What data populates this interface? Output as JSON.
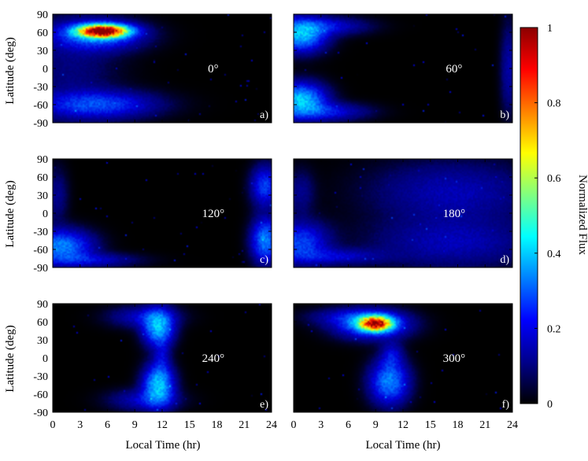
{
  "chart_data": {
    "type": "heatmap",
    "panels": [
      {
        "id": "a)",
        "angle": "0°",
        "blobs": [
          {
            "x": 5.5,
            "y": 62,
            "sx": 1.8,
            "sy": 7,
            "peak": 1.0
          },
          {
            "x": 5.0,
            "y": 55,
            "sx": 3.2,
            "sy": 16,
            "peak": 0.22
          },
          {
            "x": 5.0,
            "y": -60,
            "sx": 4.2,
            "sy": 15,
            "peak": 0.18
          },
          {
            "x": 2.0,
            "y": 0,
            "sx": 3.5,
            "sy": 60,
            "peak": 0.05
          }
        ]
      },
      {
        "id": "b)",
        "angle": "60°",
        "blobs": [
          {
            "x": 0.8,
            "y": 55,
            "sx": 1.8,
            "sy": 18,
            "peak": 0.3
          },
          {
            "x": 0.8,
            "y": -52,
            "sx": 1.8,
            "sy": 18,
            "peak": 0.32
          },
          {
            "x": 3.5,
            "y": 70,
            "sx": 3.0,
            "sy": 10,
            "peak": 0.12
          },
          {
            "x": 3.5,
            "y": -72,
            "sx": 3.0,
            "sy": 10,
            "peak": 0.13
          },
          {
            "x": 23.6,
            "y": 0,
            "sx": 0.6,
            "sy": 50,
            "peak": 0.08
          }
        ]
      },
      {
        "id": "c)",
        "angle": "120°",
        "blobs": [
          {
            "x": 1.0,
            "y": -55,
            "sx": 2.2,
            "sy": 18,
            "peak": 0.25
          },
          {
            "x": 23.3,
            "y": -45,
            "sx": 1.0,
            "sy": 24,
            "peak": 0.25
          },
          {
            "x": 23.3,
            "y": 45,
            "sx": 1.0,
            "sy": 22,
            "peak": 0.18
          },
          {
            "x": 4.0,
            "y": -78,
            "sx": 3.5,
            "sy": 8,
            "peak": 0.1
          },
          {
            "x": 0.5,
            "y": 30,
            "sx": 0.8,
            "sy": 30,
            "peak": 0.06
          }
        ]
      },
      {
        "id": "d)",
        "angle": "180°",
        "blobs": [
          {
            "x": 0.8,
            "y": -48,
            "sx": 2.0,
            "sy": 22,
            "peak": 0.18
          },
          {
            "x": 4.5,
            "y": -72,
            "sx": 3.5,
            "sy": 9,
            "peak": 0.1
          },
          {
            "x": 17.5,
            "y": 35,
            "sx": 6.0,
            "sy": 35,
            "peak": 0.09
          },
          {
            "x": 17.5,
            "y": -50,
            "sx": 6.0,
            "sy": 28,
            "peak": 0.09
          },
          {
            "x": 0.8,
            "y": 35,
            "sx": 1.0,
            "sy": 25,
            "peak": 0.06
          }
        ]
      },
      {
        "id": "e)",
        "angle": "240°",
        "blobs": [
          {
            "x": 11.6,
            "y": 50,
            "sx": 1.1,
            "sy": 20,
            "peak": 0.3
          },
          {
            "x": 11.6,
            "y": -45,
            "sx": 1.1,
            "sy": 22,
            "peak": 0.32
          },
          {
            "x": 10.0,
            "y": 68,
            "sx": 2.5,
            "sy": 12,
            "peak": 0.1
          },
          {
            "x": 10.0,
            "y": -70,
            "sx": 2.5,
            "sy": 12,
            "peak": 0.1
          },
          {
            "x": 12.0,
            "y": 0,
            "sx": 0.6,
            "sy": 20,
            "peak": 0.08
          }
        ]
      },
      {
        "id": "f)",
        "angle": "300°",
        "blobs": [
          {
            "x": 9.0,
            "y": 57,
            "sx": 1.2,
            "sy": 8,
            "peak": 0.8
          },
          {
            "x": 8.6,
            "y": 55,
            "sx": 2.6,
            "sy": 15,
            "peak": 0.25
          },
          {
            "x": 10.5,
            "y": -40,
            "sx": 1.4,
            "sy": 24,
            "peak": 0.25
          },
          {
            "x": 10.8,
            "y": 5,
            "sx": 0.8,
            "sy": 15,
            "peak": 0.1
          },
          {
            "x": 6.0,
            "y": 68,
            "sx": 3.0,
            "sy": 10,
            "peak": 0.08
          }
        ]
      }
    ],
    "xlabel": "Local Time (hr)",
    "ylabel": "Latitude (deg)",
    "xlim": [
      0,
      24
    ],
    "ylim": [
      -90,
      90
    ],
    "xticks": [
      "0",
      "3",
      "6",
      "9",
      "12",
      "15",
      "18",
      "21",
      "24"
    ],
    "yticks": [
      "90",
      "60",
      "30",
      "0",
      "-30",
      "-60",
      "-90"
    ],
    "colorbar": {
      "label": "Normalized Flux",
      "range": [
        0,
        1
      ],
      "ticks": [
        "1",
        "0.8",
        "0.6",
        "0.4",
        "0.2",
        "0"
      ],
      "colors": [
        "#000000",
        "#00008b",
        "#0000ff",
        "#0080ff",
        "#00ffff",
        "#80ff80",
        "#ffff00",
        "#ff8000",
        "#ff0000",
        "#8b0000"
      ]
    }
  }
}
